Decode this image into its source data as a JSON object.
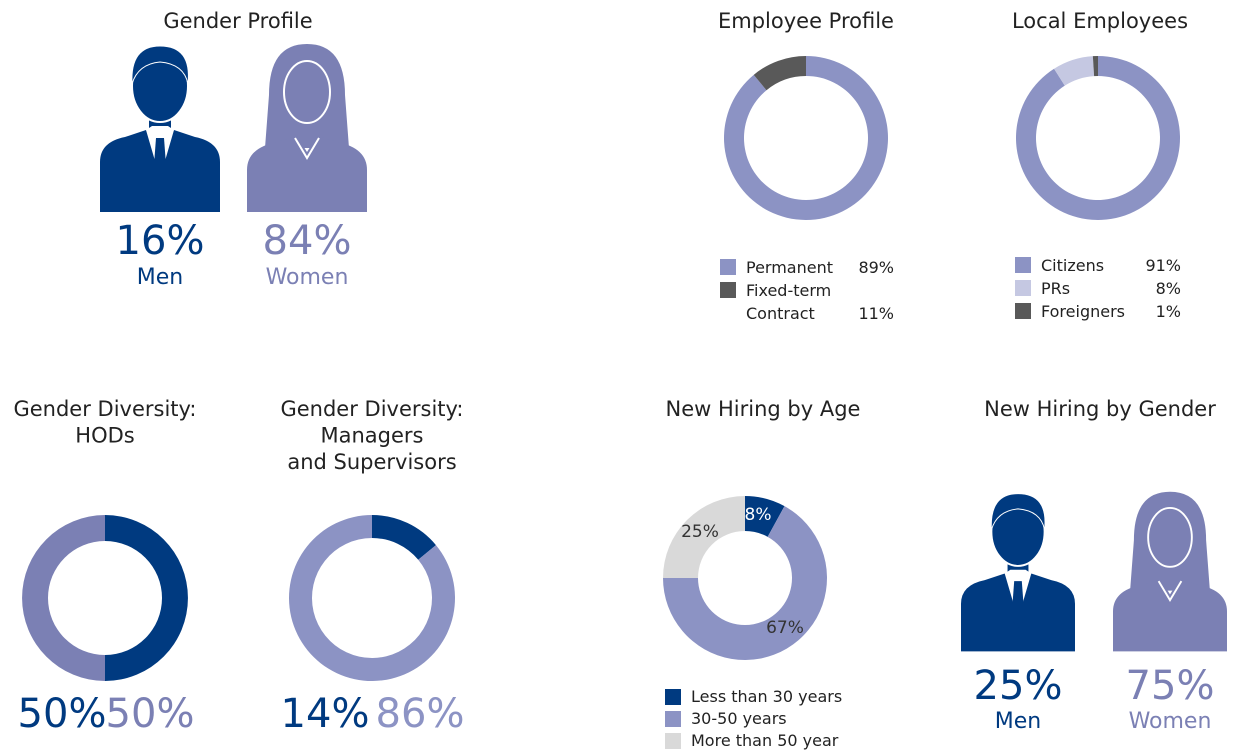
{
  "chart_data": [
    {
      "type": "pictogram",
      "title": [
        "Gender Profile"
      ],
      "categories": [
        "Men",
        "Women"
      ],
      "values": [
        16,
        84
      ],
      "value_labels": [
        "16%",
        "84%"
      ],
      "colors": [
        "#003a80",
        "#7b80b4"
      ]
    },
    {
      "type": "donut",
      "title": [
        "Employee Profile"
      ],
      "categories": [
        "Permanent",
        "Fixed-term Contract"
      ],
      "values": [
        89,
        11
      ],
      "value_labels": [
        "89%",
        "11%"
      ],
      "colors": [
        "#8c93c4",
        "#595959"
      ]
    },
    {
      "type": "donut",
      "title": [
        "Local Employees"
      ],
      "categories": [
        "Citizens",
        "PRs",
        "Foreigners"
      ],
      "values": [
        91,
        8,
        1
      ],
      "value_labels": [
        "91%",
        "8%",
        "1%"
      ],
      "colors": [
        "#8c93c4",
        "#c5c8e2",
        "#595959"
      ]
    },
    {
      "type": "donut",
      "title": [
        "Gender Diversity:",
        "HODs"
      ],
      "values": [
        50,
        50
      ],
      "value_labels": [
        "50%",
        "50%"
      ],
      "colors": [
        "#003a80",
        "#7b80b4"
      ]
    },
    {
      "type": "donut",
      "title": [
        "Gender Diversity:",
        "Managers",
        "and Supervisors"
      ],
      "values": [
        14,
        86
      ],
      "value_labels": [
        "14%",
        "86%"
      ],
      "colors": [
        "#003a80",
        "#8c93c4"
      ]
    },
    {
      "type": "donut",
      "title": [
        "New Hiring by Age"
      ],
      "categories": [
        "Less than 30 years",
        "30-50 years",
        "More than 50 year"
      ],
      "values": [
        8,
        67,
        25
      ],
      "value_labels": [
        "8%",
        "67%",
        "25%"
      ],
      "colors": [
        "#003a80",
        "#8c93c4",
        "#d9d9d9"
      ]
    },
    {
      "type": "pictogram",
      "title": [
        "New Hiring by Gender"
      ],
      "categories": [
        "Men",
        "Women"
      ],
      "values": [
        25,
        75
      ],
      "value_labels": [
        "25%",
        "75%"
      ],
      "colors": [
        "#003a80",
        "#7b80b4"
      ]
    }
  ]
}
